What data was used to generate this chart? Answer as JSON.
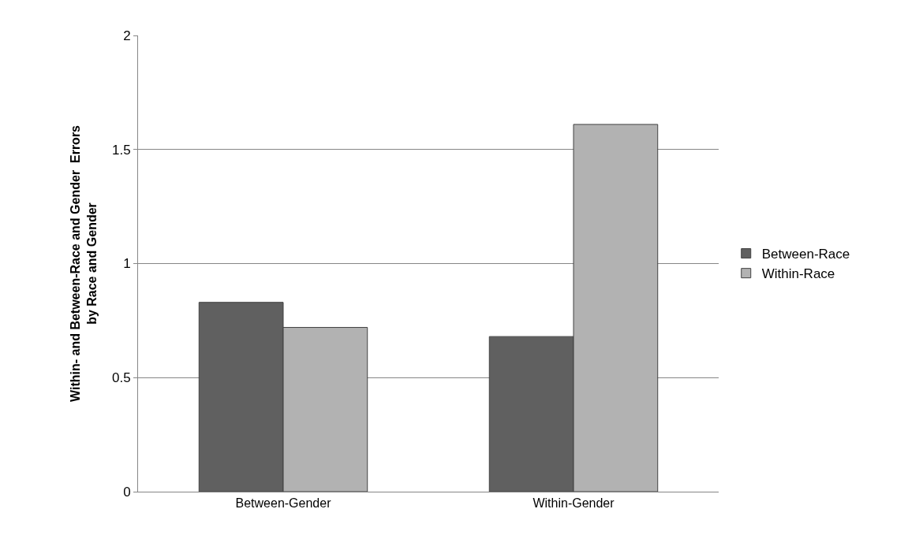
{
  "chart_data": {
    "type": "bar",
    "ylabel": "Within- and Between-Race and Gender  Errors\nby Race and Gender",
    "categories": [
      "Between-Gender",
      "Within-Gender"
    ],
    "series": [
      {
        "name": "Between-Race",
        "color": "#606060",
        "values": [
          0.83,
          0.68
        ]
      },
      {
        "name": "Within-Race",
        "color": "#b2b2b2",
        "values": [
          0.72,
          1.61
        ]
      }
    ],
    "ylim": [
      0,
      2
    ],
    "yticks": [
      0,
      0.5,
      1,
      1.5,
      2
    ],
    "grid": "y",
    "legend": "right"
  }
}
